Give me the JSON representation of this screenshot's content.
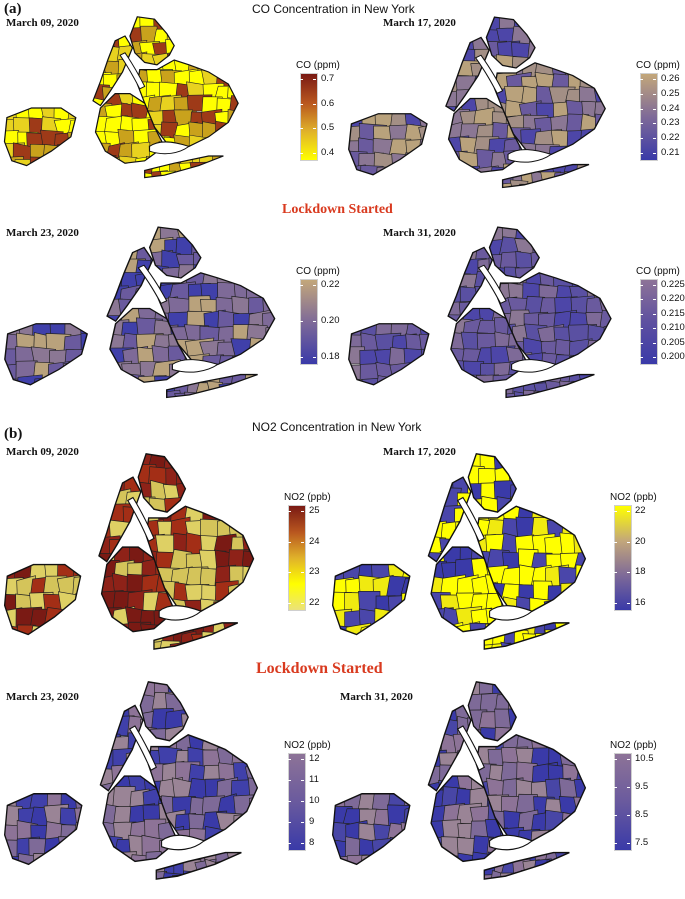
{
  "panel_a_label": "(a)",
  "panel_b_label": "(b)",
  "co_title": "CO Concentration in New York",
  "no2_title": "NO2 Concentration in New York",
  "lockdown_label": "Lockdown Started",
  "co_maps": [
    {
      "date": "March 09, 2020",
      "legend_title": "CO (ppm)",
      "ticks": [
        "0.7",
        "0.6",
        "0.5",
        "0.4"
      ],
      "gradient": [
        "#7a1a14",
        "#b8561f",
        "#e0b22a",
        "#ffff00"
      ]
    },
    {
      "date": "March 17, 2020",
      "legend_title": "CO (ppm)",
      "ticks": [
        "0.26",
        "0.25",
        "0.24",
        "0.23",
        "0.22",
        "0.21"
      ],
      "gradient": [
        "#c3a77a",
        "#7e6a98",
        "#3a3aa8"
      ]
    },
    {
      "date": "March 23, 2020",
      "legend_title": "CO (ppm)",
      "ticks": [
        "0.22",
        "0.20",
        "0.18"
      ],
      "gradient": [
        "#c3a77a",
        "#7e6a98",
        "#3a3aa8"
      ]
    },
    {
      "date": "March 31, 2020",
      "legend_title": "CO (ppm)",
      "ticks": [
        "0.225",
        "0.220",
        "0.215",
        "0.210",
        "0.205",
        "0.200"
      ],
      "gradient": [
        "#8d7397",
        "#5e50a0",
        "#3a3aa8"
      ]
    }
  ],
  "no2_maps": [
    {
      "date": "March 09, 2020",
      "legend_title": "NO2 (ppb)",
      "ticks": [
        "25",
        "24",
        "23",
        "22"
      ],
      "gradient": [
        "#7a1a14",
        "#b8561f",
        "#e0b22a",
        "#ffff00",
        "#ebe27a"
      ]
    },
    {
      "date": "March 17, 2020",
      "legend_title": "NO2 (ppb)",
      "ticks": [
        "22",
        "20",
        "18",
        "16"
      ],
      "gradient": [
        "#ffff00",
        "#c3a77a",
        "#7e6a98",
        "#3a3aa8"
      ]
    },
    {
      "date": "March 23, 2020",
      "legend_title": "NO2 (ppb)",
      "ticks": [
        "12",
        "11",
        "10",
        "9",
        "8"
      ],
      "gradient": [
        "#8d7397",
        "#6a5a9e",
        "#3a3aa8"
      ]
    },
    {
      "date": "March 31, 2020",
      "legend_title": "NO2 (ppb)",
      "ticks": [
        "10.5",
        "9.5",
        "8.5",
        "7.5"
      ],
      "gradient": [
        "#8d7397",
        "#6a5a9e",
        "#3a3aa8"
      ]
    }
  ],
  "map_palettes": {
    "co_0": [
      "#ffff00",
      "#e8d21f",
      "#9e3a18",
      "#ffff00",
      "#c9a21c"
    ],
    "co_1": [
      "#b9a27c",
      "#8b7794",
      "#4d46a8",
      "#a38f85",
      "#6a5a9e"
    ],
    "co_2": [
      "#7e6a98",
      "#4040aa",
      "#b9a27c",
      "#6a5a9e",
      "#8b7794"
    ],
    "co_3": [
      "#6a5a9e",
      "#8b7794",
      "#4d46a8",
      "#7e6a98",
      "#5a50a2"
    ],
    "no2_0": [
      "#ded064",
      "#8e2218",
      "#a32e16",
      "#d4c45a",
      "#7a1a14"
    ],
    "no2_1": [
      "#ffff00",
      "#3a3aa8",
      "#ffff00",
      "#4a46aa",
      "#f0ea10"
    ],
    "no2_2": [
      "#8d7397",
      "#3a3aa8",
      "#7e6a98",
      "#4040aa",
      "#9a8496"
    ],
    "no2_3": [
      "#8d7397",
      "#3a3aa8",
      "#7e6a98",
      "#4846a6",
      "#9a8496"
    ]
  }
}
